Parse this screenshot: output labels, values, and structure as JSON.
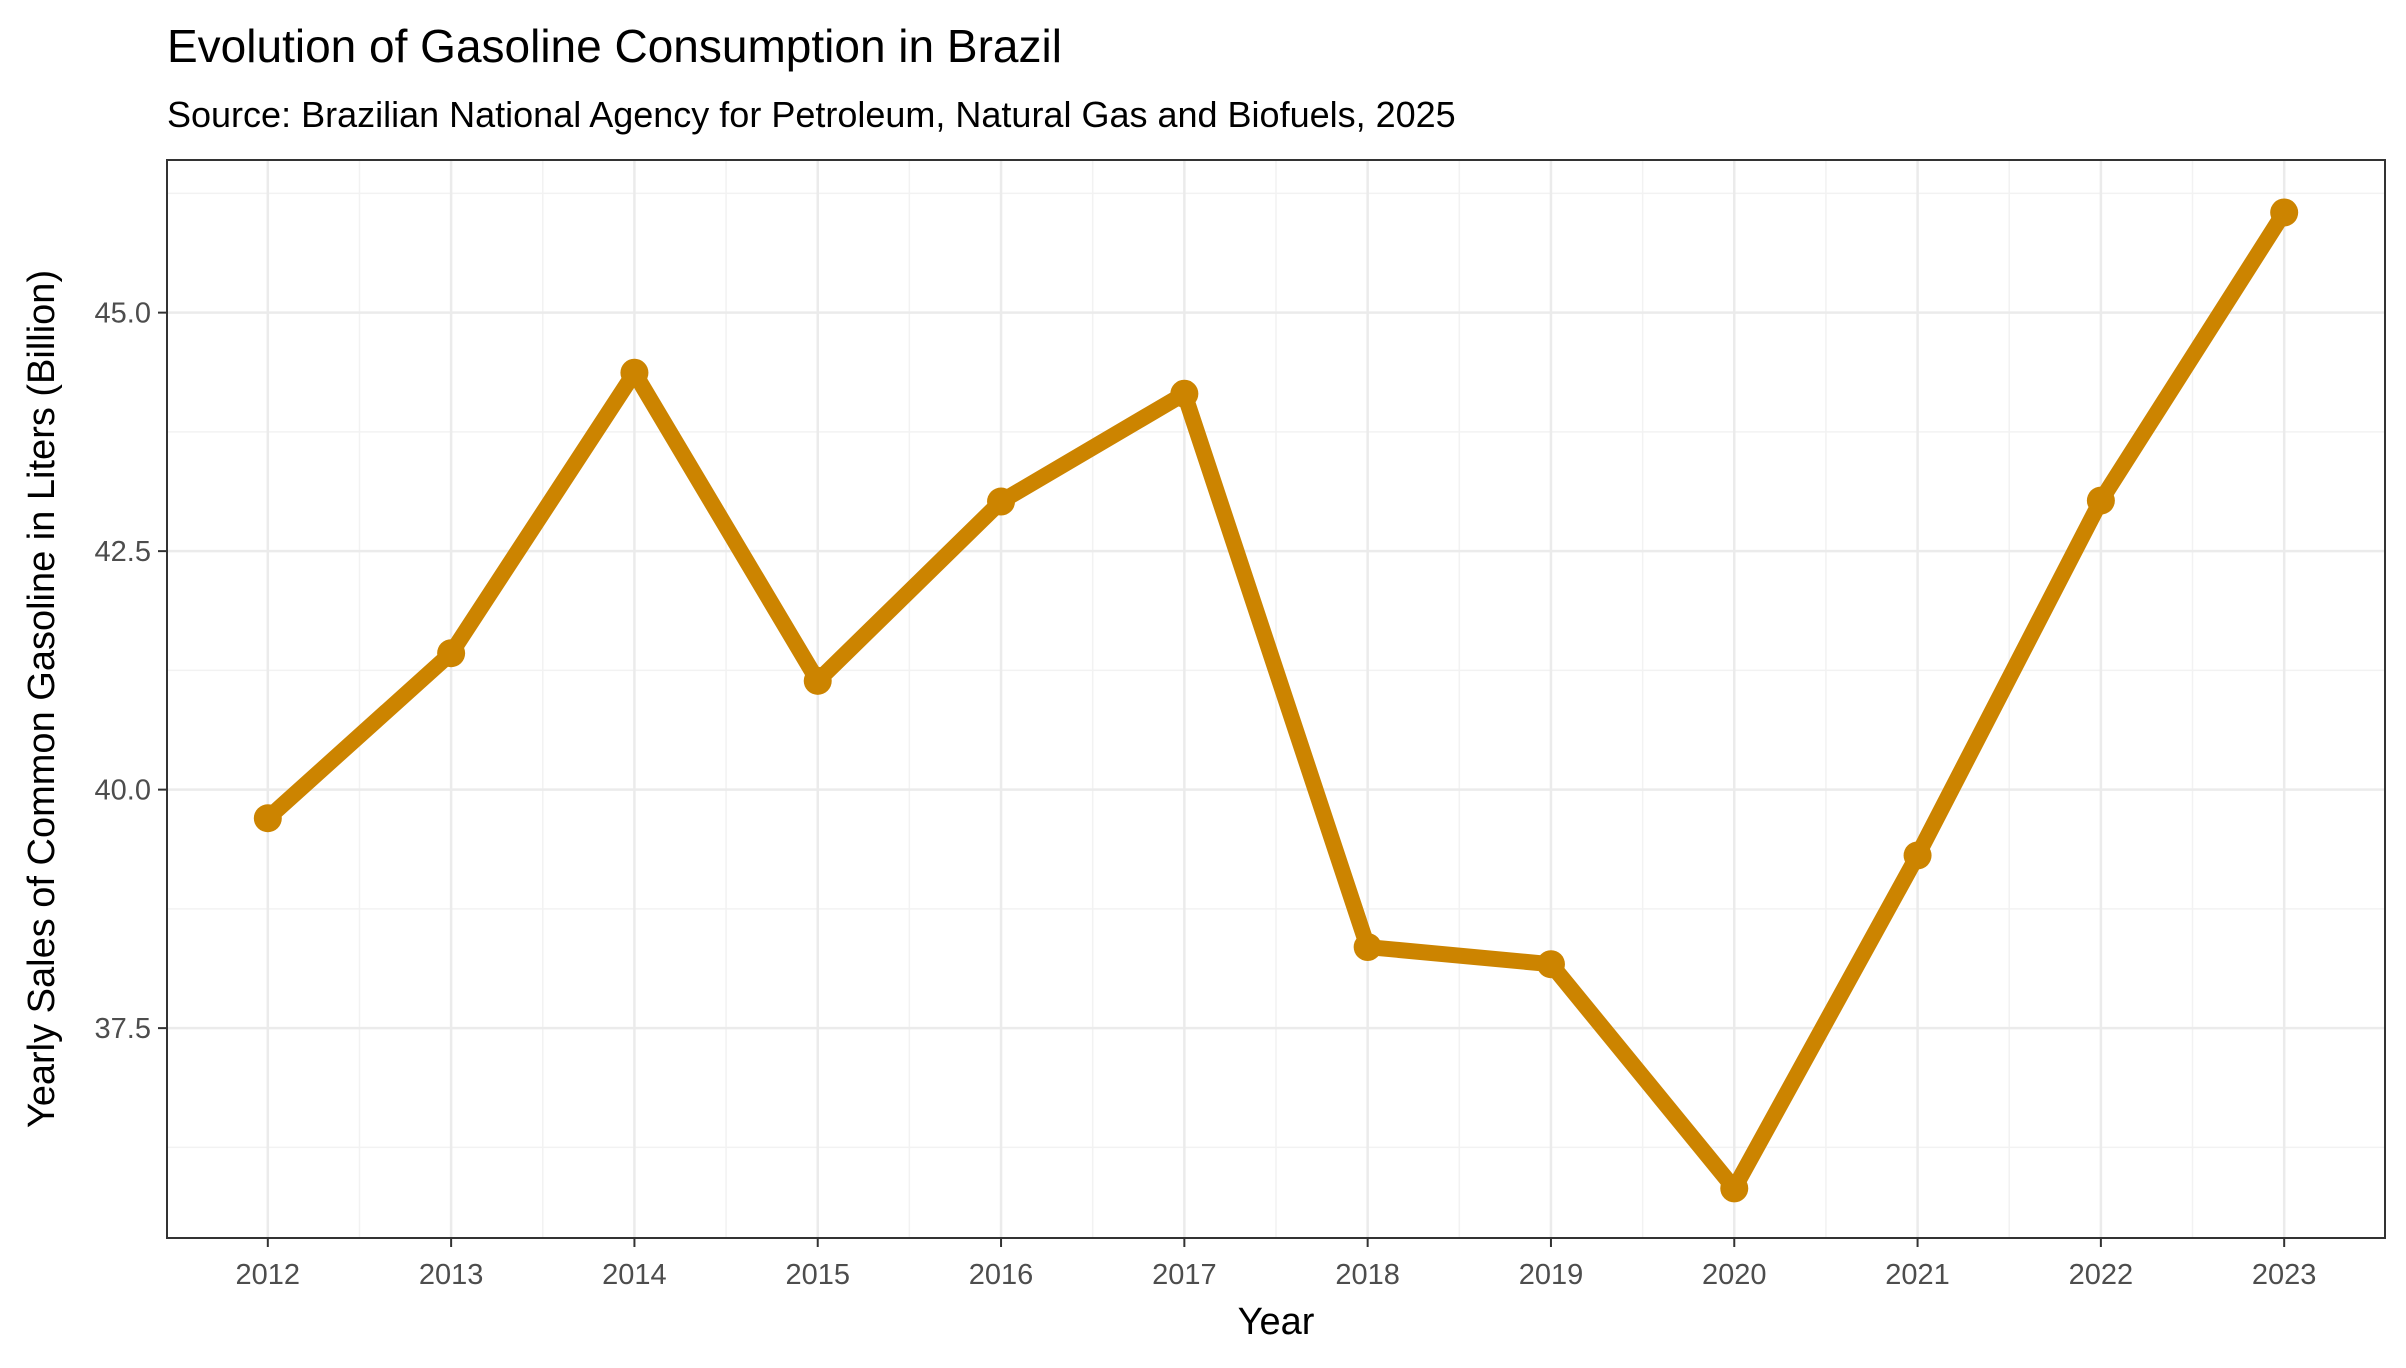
{
  "chart_data": {
    "type": "line",
    "title": "Evolution of Gasoline Consumption in Brazil",
    "subtitle": "Source: Brazilian National Agency for Petroleum, Natural Gas and Biofuels, 2025",
    "xlabel": "Year",
    "ylabel": "Yearly Sales of Common Gasoline in Liters (Billion)",
    "x": [
      2012,
      2013,
      2014,
      2015,
      2016,
      2017,
      2018,
      2019,
      2020,
      2021,
      2022,
      2023
    ],
    "series": [
      {
        "values": [
          39.7,
          41.43,
          44.37,
          41.14,
          43.02,
          44.15,
          38.35,
          38.17,
          35.82,
          39.31,
          43.03,
          46.05
        ],
        "color": "#CC8400"
      }
    ],
    "xlim": [
      2011.45,
      2023.55
    ],
    "ylim": [
      35.3,
      46.6
    ],
    "y_ticks": [
      37.5,
      40.0,
      42.5,
      45.0
    ],
    "y_tick_labels": [
      "37.5",
      "40.0",
      "42.5",
      "45.0"
    ],
    "x_tick_labels": [
      "2012",
      "2013",
      "2014",
      "2015",
      "2016",
      "2017",
      "2018",
      "2019",
      "2020",
      "2021",
      "2022",
      "2023"
    ],
    "grid": true,
    "legend": "none",
    "theme": "bw"
  }
}
